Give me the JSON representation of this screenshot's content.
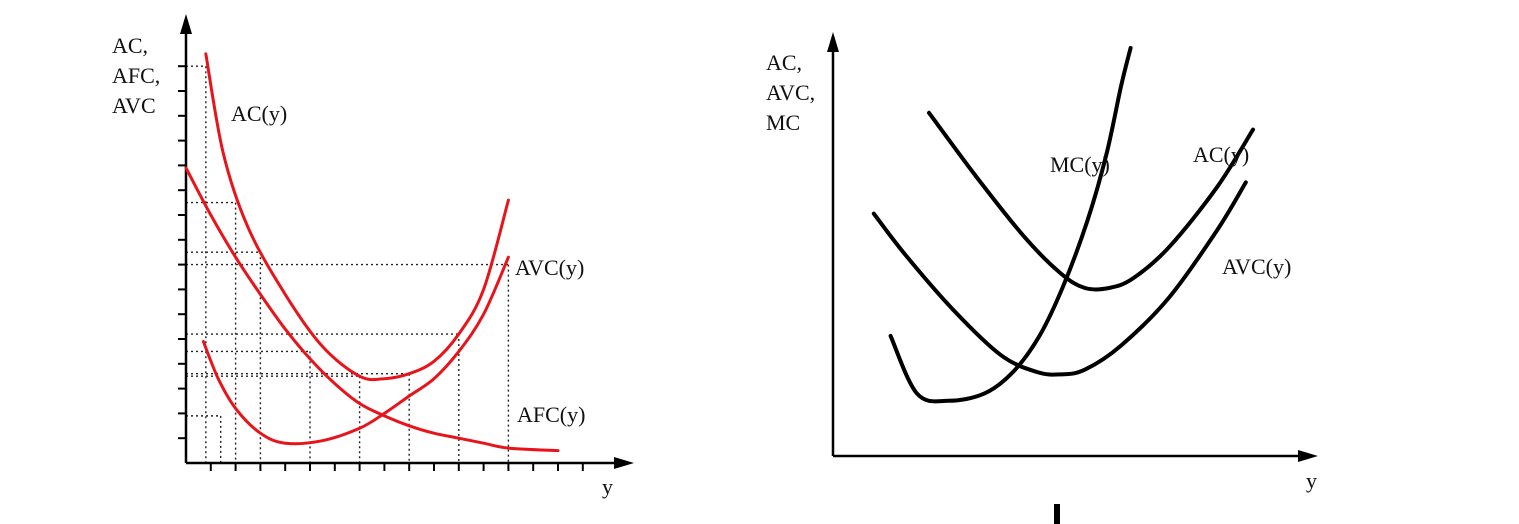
{
  "colors": {
    "left_curves": "#e8141c",
    "right_curves": "#000000",
    "axes": "#000000"
  },
  "chart_data": [
    {
      "type": "line",
      "title": "",
      "ylabel_lines": [
        "AC,",
        "AFC,",
        "AVC"
      ],
      "xlabel": "y",
      "xlim": [
        0,
        17.5
      ],
      "ylim": [
        0,
        17
      ],
      "grid": "dotted guide lines at marked points",
      "series": [
        {
          "name": "AC(y)",
          "x": [
            0.8,
            1.5,
            2.5,
            4,
            5.5,
            7,
            8,
            9,
            10,
            11,
            12,
            13
          ],
          "y": [
            16.5,
            12.5,
            9.5,
            6.8,
            4.7,
            3.5,
            3.4,
            3.6,
            4.1,
            5.2,
            7.0,
            10.6
          ]
        },
        {
          "name": "AVC(y)",
          "x": [
            0.7,
            1.3,
            2,
            3,
            4,
            5.5,
            7,
            8,
            9,
            10,
            11,
            12,
            13
          ],
          "y": [
            4.9,
            3.4,
            2.2,
            1.2,
            0.8,
            0.9,
            1.4,
            2.0,
            2.7,
            3.4,
            4.5,
            6.0,
            8.3
          ]
        },
        {
          "name": "AFC(y)",
          "x": [
            0,
            1,
            2,
            3,
            4,
            5,
            6,
            7,
            8,
            9,
            10,
            11,
            12,
            13,
            15
          ],
          "y": [
            11.9,
            10.0,
            8.3,
            6.8,
            5.4,
            4.2,
            3.2,
            2.4,
            1.9,
            1.5,
            1.2,
            1.0,
            0.8,
            0.6,
            0.5
          ]
        }
      ],
      "guides": [
        {
          "x": 0.8,
          "y": 16.0
        },
        {
          "x": 2.0,
          "y": 10.5
        },
        {
          "x": 3.0,
          "y": 8.5
        },
        {
          "x": 5.0,
          "y": 4.5
        },
        {
          "x": 7.0,
          "y": 3.5
        },
        {
          "x": 9.0,
          "y": 3.6
        },
        {
          "x": 11.0,
          "y": 5.2
        },
        {
          "x": 13.0,
          "y": 8.0
        },
        {
          "x": 1.4,
          "y": 1.9
        }
      ]
    },
    {
      "type": "line",
      "title": "",
      "ylabel_lines": [
        "AC,",
        "AVC,",
        "MC"
      ],
      "xlabel": "y",
      "xlim": [
        0,
        20
      ],
      "ylim": [
        0,
        17
      ],
      "grid": "off",
      "series": [
        {
          "name": "MC(y)",
          "x": [
            2.4,
            3.5,
            4.8,
            6.3,
            7.5,
            8.6,
            9.6,
            10.6,
            11.4,
            12.0,
            12.4
          ],
          "y": [
            5.0,
            2.6,
            2.3,
            2.6,
            3.5,
            5.0,
            7.1,
            9.8,
            12.6,
            15.4,
            17.0
          ]
        },
        {
          "name": "AC(y)",
          "x": [
            4.0,
            6.0,
            8.0,
            9.5,
            10.5,
            11.5,
            12.5,
            14.0,
            16.0,
            17.5
          ],
          "y": [
            14.3,
            11.6,
            9.1,
            7.6,
            7.0,
            7.0,
            7.4,
            8.7,
            11.2,
            13.6
          ]
        },
        {
          "name": "AVC(y)",
          "x": [
            1.7,
            3.0,
            5.0,
            7.0,
            8.5,
            9.5,
            10.5,
            12.0,
            14.0,
            16.0,
            17.2
          ],
          "y": [
            10.1,
            8.4,
            6.1,
            4.2,
            3.5,
            3.4,
            3.6,
            4.6,
            6.6,
            9.4,
            11.4
          ]
        }
      ]
    }
  ]
}
